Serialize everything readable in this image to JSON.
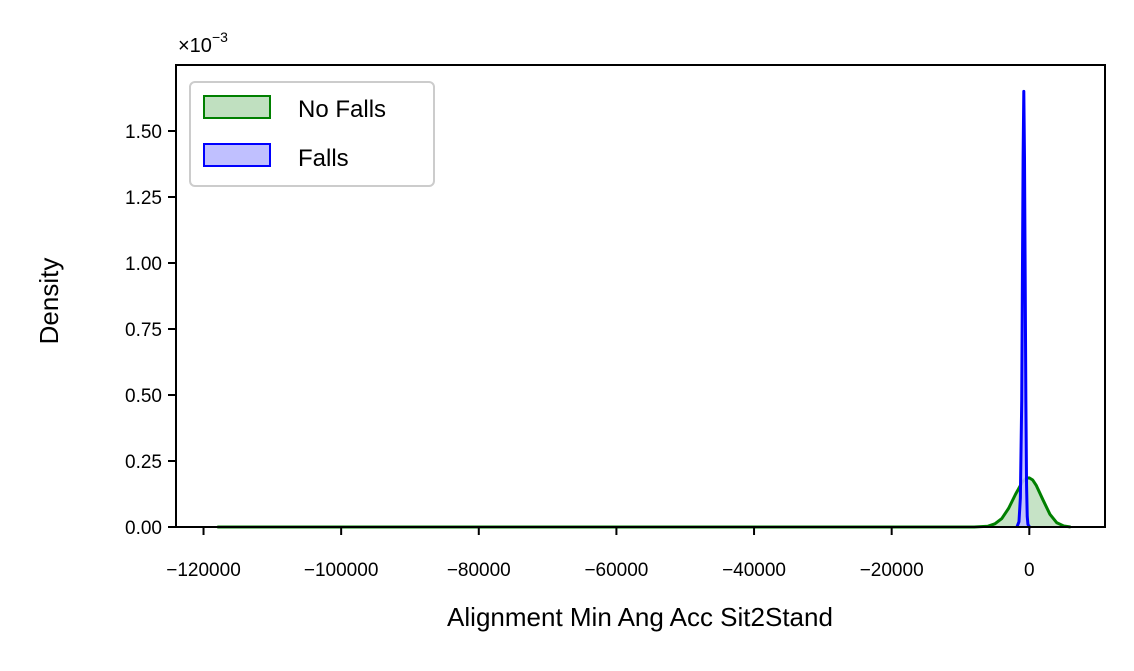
{
  "chart_data": {
    "type": "area",
    "title": "",
    "xlabel": "Alignment Min Ang Acc Sit2Stand",
    "ylabel": "Density",
    "y_scale_label": "×10",
    "y_scale_exponent": "−3",
    "xlim": [
      -124000,
      11000
    ],
    "ylim": [
      0,
      1.75
    ],
    "x_ticks": [
      -120000,
      -100000,
      -80000,
      -60000,
      -40000,
      -20000,
      0
    ],
    "x_tick_labels": [
      "−120000",
      "−100000",
      "−80000",
      "−60000",
      "−40000",
      "−20000",
      "0"
    ],
    "y_ticks": [
      0,
      0.25,
      0.5,
      0.75,
      1.0,
      1.25,
      1.5
    ],
    "y_tick_labels": [
      "0.00",
      "0.25",
      "0.50",
      "0.75",
      "1.00",
      "1.25",
      "1.50"
    ],
    "legend_position": "top-left",
    "grid": false,
    "series": [
      {
        "name": "No Falls",
        "color": "#008000",
        "fill": "#c0e0c0",
        "x": [
          -118000,
          -100000,
          -80000,
          -60000,
          -40000,
          -20000,
          -8000,
          -6000,
          -5000,
          -4000,
          -3000,
          -2000,
          -1000,
          -500,
          0,
          500,
          1000,
          2000,
          3000,
          4000,
          5000,
          6000
        ],
        "y": [
          0,
          0,
          0,
          0,
          0,
          0,
          0,
          0.003,
          0.012,
          0.032,
          0.071,
          0.124,
          0.171,
          0.184,
          0.186,
          0.178,
          0.158,
          0.102,
          0.048,
          0.016,
          0.004,
          0
        ]
      },
      {
        "name": "Falls",
        "color": "#0000ff",
        "fill": "#c0c0ff",
        "x": [
          -1800,
          -1500,
          -1300,
          -1100,
          -1000,
          -900,
          -800,
          -700,
          -600,
          -500,
          -400,
          -300,
          -200,
          0,
          200
        ],
        "y": [
          0,
          0.02,
          0.11,
          0.48,
          0.95,
          1.4,
          1.65,
          1.4,
          0.95,
          0.48,
          0.16,
          0.04,
          0.01,
          0,
          0
        ]
      }
    ]
  }
}
